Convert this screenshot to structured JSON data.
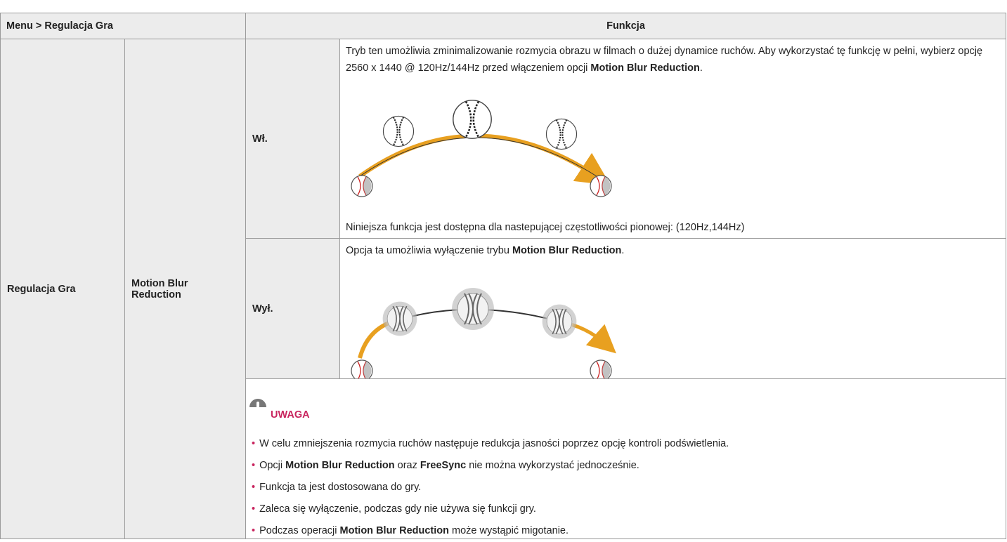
{
  "table": {
    "header": [
      "Menu > Regulacja Gra",
      "Funkcja"
    ],
    "menu": "Regulacja Gra",
    "item": "Motion Blur Reduction",
    "options": [
      {
        "label": "Wł.",
        "description": [
          {
            "text": "Tryb ten umożliwia zminimalizowanie rozmycia obrazu w filmach o dużej dynamice ruchów. Aby wykorzystać tę funkcję w pełni, wybierz opcję 2560 x 1440 @ 120Hz/144Hz przed włączeniem opcji "
          },
          {
            "text": "Motion Blur Reduction",
            "bold": true
          },
          {
            "text": "."
          }
        ],
        "footnote": "Niniejsza funkcja jest dostępna dla nastepującej częstotliwości pionowej: (120Hz,144Hz)"
      },
      {
        "label": "Wył.",
        "description": [
          {
            "text": "Opcja ta umożliwia wyłączenie trybu "
          },
          {
            "text": "Motion Blur Reduction",
            "bold": true
          },
          {
            "text": "."
          }
        ]
      }
    ],
    "note": {
      "title": "UWAGA",
      "items": [
        [
          {
            "text": "W celu zmniejszenia rozmycia ruchów następuje redukcja jasności poprzez opcję kontroli podświetlenia."
          }
        ],
        [
          {
            "text": "Opcji "
          },
          {
            "text": "Motion Blur Reduction",
            "bold": true
          },
          {
            "text": " oraz "
          },
          {
            "text": "FreeSync",
            "bold": true
          },
          {
            "text": " nie można wykorzystać jednocześnie."
          }
        ],
        [
          {
            "text": "Funkcja ta jest dostosowana do gry."
          }
        ],
        [
          {
            "text": "Zaleca się wyłączenie, podczas gdy nie używa się funkcji gry."
          }
        ],
        [
          {
            "text": "Podczas operacji "
          },
          {
            "text": "Motion Blur Reduction",
            "bold": true
          },
          {
            "text": " może wystąpić migotanie."
          }
        ]
      ]
    }
  }
}
